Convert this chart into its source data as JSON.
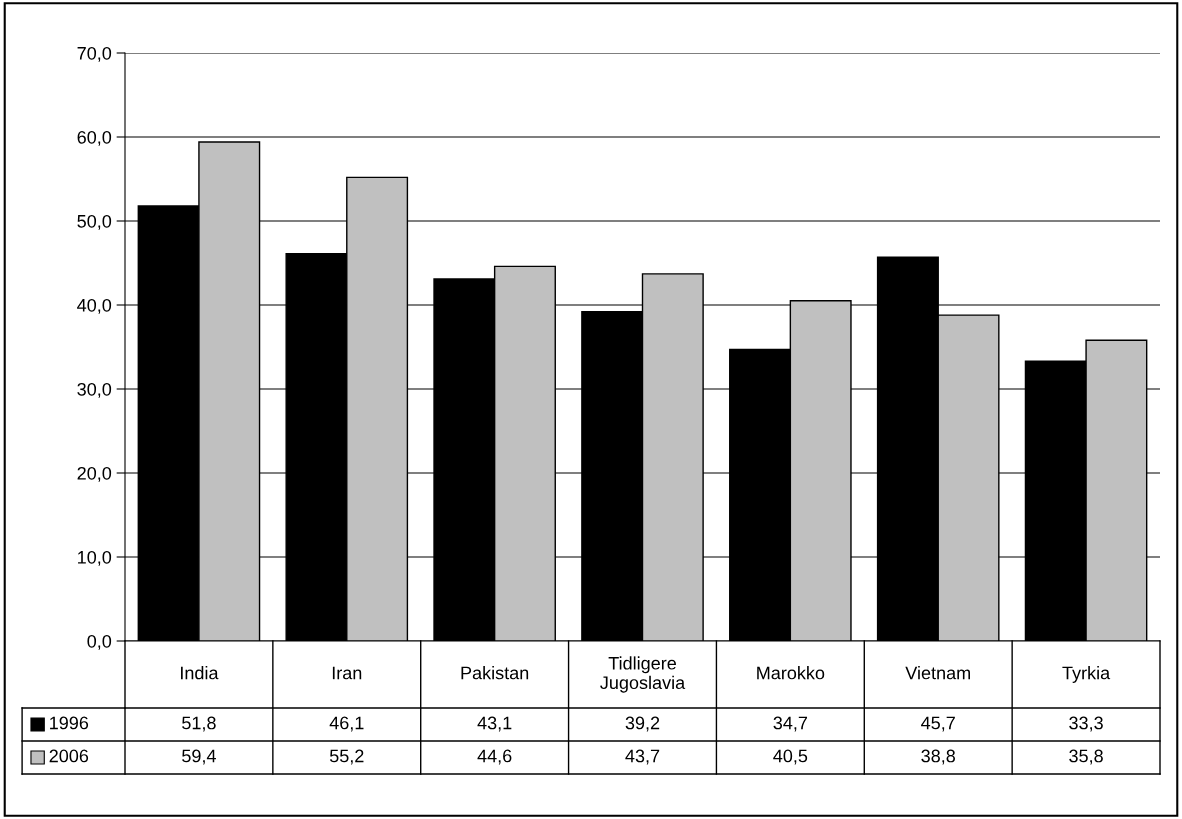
{
  "chart_data": {
    "type": "bar",
    "categories": [
      "India",
      "Iran",
      "Pakistan",
      "Tidligere Jugoslavia",
      "Marokko",
      "Vietnam",
      "Tyrkia"
    ],
    "series": [
      {
        "name": "1996",
        "color": "#000000",
        "values": [
          51.8,
          46.1,
          43.1,
          39.2,
          34.7,
          45.7,
          33.3
        ],
        "value_labels": [
          "51,8",
          "46,1",
          "43,1",
          "39,2",
          "34,7",
          "45,7",
          "33,3"
        ]
      },
      {
        "name": "2006",
        "color": "#c0c0c0",
        "values": [
          59.4,
          55.2,
          44.6,
          43.7,
          40.5,
          38.8,
          35.8
        ],
        "value_labels": [
          "59,4",
          "55,2",
          "44,6",
          "43,7",
          "40,5",
          "38,8",
          "35,8"
        ]
      }
    ],
    "ylim": [
      0,
      70
    ],
    "yticks": [
      {
        "value": 0,
        "label": "0,0"
      },
      {
        "value": 10,
        "label": "10,0"
      },
      {
        "value": 20,
        "label": "20,0"
      },
      {
        "value": 30,
        "label": "30,0"
      },
      {
        "value": 40,
        "label": "40,0"
      },
      {
        "value": 50,
        "label": "50,0"
      },
      {
        "value": 60,
        "label": "60,0"
      },
      {
        "value": 70,
        "label": "70,0"
      }
    ],
    "grid": "y",
    "legend": "bottom left"
  }
}
